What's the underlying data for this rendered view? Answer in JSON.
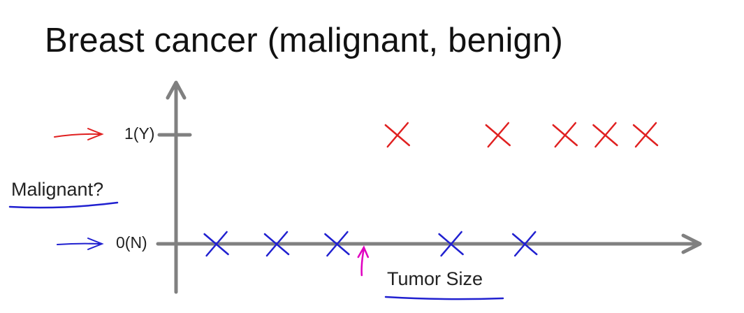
{
  "chart_data": {
    "type": "scatter",
    "title": "Breast cancer (malignant, benign)",
    "xlabel": "Tumor Size",
    "ylabel": "Malignant?",
    "y_ticks": [
      "1(Y)",
      "0(N)"
    ],
    "series": [
      {
        "color": "#e02020",
        "marker": "x",
        "points": [
          [
            3.3,
            1
          ],
          [
            4.8,
            1
          ],
          [
            5.8,
            1
          ],
          [
            6.4,
            1
          ],
          [
            7.0,
            1
          ]
        ]
      },
      {
        "color": "#2020d0",
        "marker": "x",
        "points": [
          [
            0.6,
            0
          ],
          [
            1.5,
            0
          ],
          [
            2.4,
            0
          ],
          [
            4.1,
            0
          ],
          [
            5.2,
            0
          ]
        ]
      }
    ],
    "xlim": [
      0,
      7.5
    ],
    "ylim": [
      0,
      1
    ],
    "annotation_color": "#e000c0",
    "annotation_x": 2.8
  }
}
